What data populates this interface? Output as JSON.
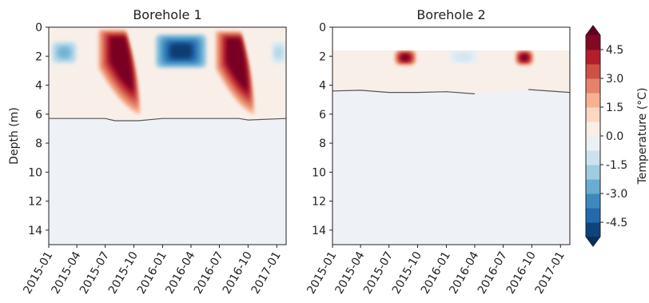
{
  "chart_data": [
    {
      "type": "heatmap",
      "title": "Borehole 1",
      "xlabel": "",
      "ylabel": "Depth (m)",
      "x_ticks": [
        "2015-01",
        "2015-04",
        "2015-07",
        "2015-10",
        "2016-01",
        "2016-04",
        "2016-07",
        "2016-10",
        "2017-01"
      ],
      "xlim": [
        "2015-01-01",
        "2017-01-31"
      ],
      "y_ticks": [
        0,
        2,
        4,
        6,
        8,
        10,
        12,
        14
      ],
      "ylim": [
        15,
        0
      ],
      "zero_isotherm": {
        "color": "#555555",
        "points": [
          [
            "2015-01-01",
            6.3
          ],
          [
            "2015-07-01",
            6.3
          ],
          [
            "2015-08-01",
            6.45
          ],
          [
            "2015-10-15",
            6.45
          ],
          [
            "2016-01-01",
            6.3
          ],
          [
            "2016-09-01",
            6.3
          ],
          [
            "2016-10-01",
            6.4
          ],
          [
            "2017-01-31",
            6.3
          ]
        ]
      },
      "anomalies": [
        {
          "sign": "cold",
          "start": "2015-01-10",
          "end": "2015-04-01",
          "depth_range": [
            1.0,
            2.5
          ],
          "min_temp": -2.5
        },
        {
          "sign": "warm",
          "start": "2015-06-10",
          "end": "2015-10-20",
          "depth_range": [
            0.2,
            6.0
          ],
          "max_temp": 5.0
        },
        {
          "sign": "cold",
          "start": "2015-12-10",
          "end": "2016-05-20",
          "depth_range": [
            0.5,
            2.8
          ],
          "min_temp": -5.0
        },
        {
          "sign": "warm",
          "start": "2016-06-20",
          "end": "2016-10-20",
          "depth_range": [
            0.3,
            6.0
          ],
          "max_temp": 5.0
        },
        {
          "sign": "cold",
          "start": "2016-12-15",
          "end": "2017-01-31",
          "depth_range": [
            1.0,
            2.5
          ],
          "min_temp": -1.5
        }
      ]
    },
    {
      "type": "heatmap",
      "title": "Borehole 2",
      "xlabel": "",
      "ylabel": "",
      "x_ticks": [
        "2015-01",
        "2015-04",
        "2015-07",
        "2015-10",
        "2016-01",
        "2016-04",
        "2016-07",
        "2016-10",
        "2017-01"
      ],
      "xlim": [
        "2015-01-01",
        "2017-01-31"
      ],
      "y_ticks": [
        0,
        2,
        4,
        6,
        8,
        10,
        12,
        14
      ],
      "ylim": [
        15,
        0
      ],
      "no_data_above_depth": 1.6,
      "zero_isotherm": {
        "color": "#555555",
        "segments": [
          [
            [
              "2015-01-01",
              4.4
            ],
            [
              "2015-04-01",
              4.35
            ],
            [
              "2015-07-01",
              4.5
            ],
            [
              "2015-10-01",
              4.5
            ],
            [
              "2016-01-01",
              4.45
            ],
            [
              "2016-04-01",
              4.6
            ]
          ],
          [
            [
              "2016-09-20",
              4.3
            ],
            [
              "2017-01-31",
              4.5
            ]
          ]
        ]
      },
      "anomalies": [
        {
          "sign": "warm",
          "start": "2015-07-20",
          "end": "2015-09-25",
          "depth_range": [
            1.6,
            2.6
          ],
          "max_temp": 5.0
        },
        {
          "sign": "cold",
          "start": "2016-01-10",
          "end": "2016-04-10",
          "depth_range": [
            1.6,
            2.5
          ],
          "min_temp": -1.0
        },
        {
          "sign": "warm",
          "start": "2016-08-10",
          "end": "2016-10-05",
          "depth_range": [
            1.6,
            2.6
          ],
          "max_temp": 5.0
        }
      ]
    }
  ],
  "colorbar": {
    "label": "Temperature (°C)",
    "ticks": [
      "4.5",
      "3.0",
      "1.5",
      "0.0",
      "-1.5",
      "-3.0",
      "-4.5"
    ],
    "tick_values": [
      4.5,
      3.0,
      1.5,
      0.0,
      -1.5,
      -3.0,
      -4.5
    ],
    "range": [
      -5.25,
      5.25
    ],
    "colormap": "RdBu_r",
    "extend": "both"
  }
}
